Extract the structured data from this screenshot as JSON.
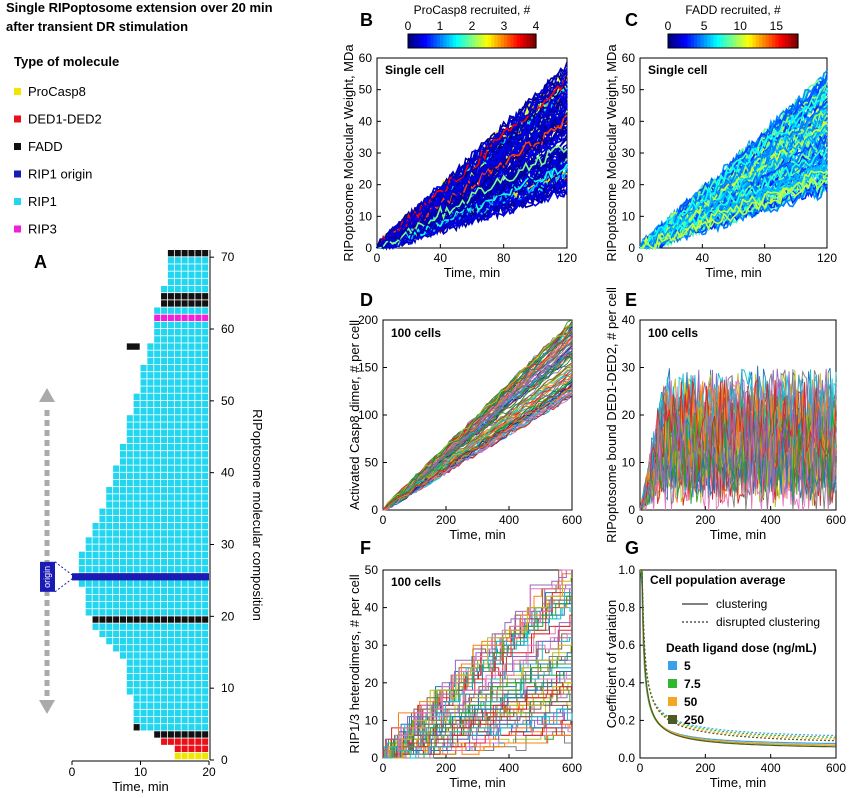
{
  "header": {
    "title_line1": "Single RIPoptosome extension over 20 min",
    "title_line2": "after transient DR stimulation"
  },
  "legend_molecules": {
    "heading": "Type of molecule",
    "items": [
      {
        "label": "ProCasp8",
        "color": "#f2e600"
      },
      {
        "label": "DED1-DED2",
        "color": "#e8101a"
      },
      {
        "label": "FADD",
        "color": "#111111"
      },
      {
        "label": "RIP1 origin",
        "color": "#1a1ab4"
      },
      {
        "label": "RIP1",
        "color": "#22d6f0"
      },
      {
        "label": "RIP3",
        "color": "#ee22d8"
      }
    ]
  },
  "chart_data": [
    {
      "panel": "A",
      "type": "heatmap",
      "xlabel": "Time, min",
      "ylabel": "RIPoptosome molecular composition",
      "xticks": [
        "0",
        "10",
        "20"
      ],
      "yticks": [
        "0",
        "10",
        "20",
        "30",
        "40",
        "50",
        "60",
        "70"
      ],
      "origin_label": "origin",
      "origin_row": 25.5
    },
    {
      "panel": "B",
      "type": "line",
      "inset_label": "Single cell",
      "colorbar_title": "ProCasp8 recruited, #",
      "colorbar_ticks": [
        "0",
        "1",
        "2",
        "3",
        "4"
      ],
      "xlabel": "Time, min",
      "ylabel": "RIPoptosome Molecular Weight, MDa",
      "xlim": [
        0,
        120
      ],
      "ylim": [
        0,
        60
      ],
      "xticks": [
        "0",
        "40",
        "80",
        "120"
      ],
      "yticks": [
        "0",
        "10",
        "20",
        "30",
        "40",
        "50",
        "60"
      ],
      "endpoint_range": [
        18,
        57
      ]
    },
    {
      "panel": "C",
      "type": "line",
      "inset_label": "Single cell",
      "colorbar_title": "FADD recruited, #",
      "colorbar_ticks": [
        "0",
        "5",
        "10",
        "15"
      ],
      "xlabel": "Time, min",
      "ylabel": "RIPoptosome Molecular Weight, MDa",
      "xlim": [
        0,
        120
      ],
      "ylim": [
        0,
        60
      ],
      "xticks": [
        "0",
        "40",
        "80",
        "120"
      ],
      "yticks": [
        "0",
        "10",
        "20",
        "30",
        "40",
        "50",
        "60"
      ],
      "endpoint_range": [
        18,
        55
      ]
    },
    {
      "panel": "D",
      "type": "line",
      "inset_label": "100 cells",
      "xlabel": "Time, min",
      "ylabel": "Activated Casp8 dimer, # per cell",
      "xlim": [
        0,
        600
      ],
      "ylim": [
        0,
        200
      ],
      "xticks": [
        "0",
        "200",
        "400",
        "600"
      ],
      "yticks": [
        "0",
        "50",
        "100",
        "150",
        "200"
      ],
      "endpoint_range": [
        120,
        200
      ]
    },
    {
      "panel": "E",
      "type": "line",
      "inset_label": "100 cells",
      "xlabel": "Time, min",
      "ylabel": "RIPoptosome bound DED1-DED2, # per cell",
      "xlim": [
        0,
        600
      ],
      "ylim": [
        0,
        40
      ],
      "xticks": [
        "0",
        "200",
        "400",
        "600"
      ],
      "yticks": [
        "0",
        "10",
        "20",
        "30",
        "40"
      ],
      "band": [
        0,
        38
      ]
    },
    {
      "panel": "F",
      "type": "line",
      "inset_label": "100 cells",
      "xlabel": "Time, min",
      "ylabel": "RIP1/3 heterodimers, # per cell",
      "xlim": [
        0,
        600
      ],
      "ylim": [
        0,
        50
      ],
      "xticks": [
        "0",
        "200",
        "400",
        "600"
      ],
      "yticks": [
        "0",
        "10",
        "20",
        "30",
        "40",
        "50"
      ],
      "endpoint_range": [
        5,
        50
      ]
    },
    {
      "panel": "G",
      "type": "line",
      "title": "Cell population average",
      "line_style_legend": [
        "clustering",
        "disrupted clustering"
      ],
      "dose_legend_title": "Death ligand dose (ng/mL)",
      "xlabel": "Time, min",
      "ylabel": "Coefficient of variation",
      "xlim": [
        0,
        600
      ],
      "ylim": [
        0,
        1.0
      ],
      "xticks": [
        "0",
        "200",
        "400",
        "600"
      ],
      "yticks": [
        "0.0",
        "0.2",
        "0.4",
        "0.6",
        "0.8",
        "1.0"
      ],
      "series": [
        {
          "name": "5",
          "color": "#3aa0e8",
          "clustering_end": 0.06,
          "disrupted_end": 0.1
        },
        {
          "name": "7.5",
          "color": "#2db82d",
          "clustering_end": 0.05,
          "disrupted_end": 0.09
        },
        {
          "name": "50",
          "color": "#f5a623",
          "clustering_end": 0.05,
          "disrupted_end": 0.08
        },
        {
          "name": "250",
          "color": "#4d5a23",
          "clustering_end": 0.04,
          "disrupted_end": 0.07
        }
      ]
    }
  ],
  "panel_letters": [
    "A",
    "B",
    "C",
    "D",
    "E",
    "F",
    "G"
  ]
}
